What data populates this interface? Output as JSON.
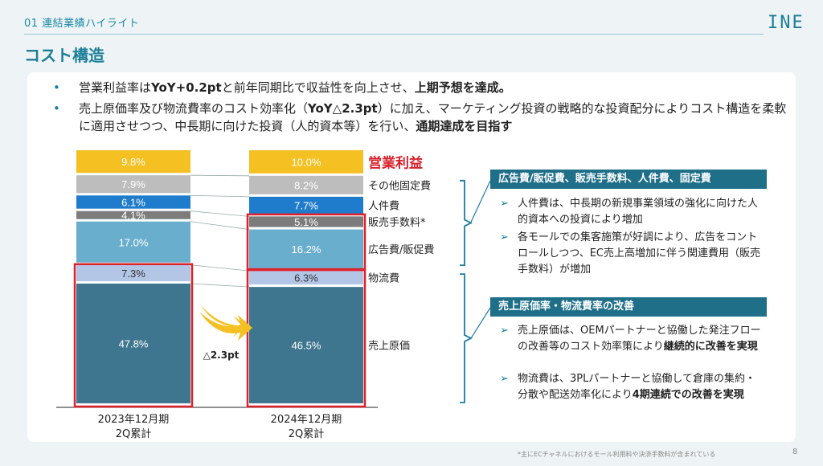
{
  "header": {
    "section_label": "01 連結業績ハイライト",
    "logo": "INE",
    "page_title": "コスト構造"
  },
  "bullets": [
    {
      "parts": [
        {
          "t": "営業利益率は",
          "b": false
        },
        {
          "t": "YoY+0.2pt",
          "b": true
        },
        {
          "t": "と前年同期比で収益性を向上させ、",
          "b": false
        },
        {
          "t": "上期予想を達成。",
          "b": true
        }
      ]
    },
    {
      "parts": [
        {
          "t": "売上原価率及び物流費率のコスト効率化（",
          "b": false
        },
        {
          "t": "YoY△2.3pt",
          "b": true
        },
        {
          "t": "）に加え、マーケティング投資の戦略的な投資配分によりコスト構造を柔軟に適用させつつ、中長期に向けた投資（人的資本等）を行い、",
          "b": false
        },
        {
          "t": "通期達成を目指す",
          "b": true
        }
      ]
    }
  ],
  "chart_data": {
    "type": "bar",
    "stacked": true,
    "categories": [
      "2023年12月期\n2Q累計",
      "2024年12月期\n2Q累計"
    ],
    "series": [
      {
        "name": "売上原価",
        "values": [
          47.8,
          46.5
        ],
        "labels": [
          "47.8%",
          "46.5%"
        ],
        "color": "#3f768f",
        "label_color": "#ffffff"
      },
      {
        "name": "物流費",
        "values": [
          7.3,
          6.3
        ],
        "labels": [
          "7.3%",
          "6.3%"
        ],
        "color": "#b3c6e6",
        "label_color": "#333333"
      },
      {
        "name": "広告費/販促費",
        "values": [
          17.0,
          16.2
        ],
        "labels": [
          "17.0%",
          "16.2%"
        ],
        "color": "#6aaecd",
        "label_color": "#ffffff"
      },
      {
        "name": "販売手数料*",
        "values": [
          4.1,
          5.1
        ],
        "labels": [
          "4.1%",
          "5.1%"
        ],
        "color": "#7c7c7c",
        "label_color": "#ffffff"
      },
      {
        "name": "人件費",
        "values": [
          6.1,
          7.7
        ],
        "labels": [
          "6.1%",
          "7.7%"
        ],
        "color": "#1f7ccc",
        "label_color": "#ffffff"
      },
      {
        "name": "その他固定費",
        "values": [
          7.9,
          8.2
        ],
        "labels": [
          "7.9%",
          "8.2%"
        ],
        "color": "#bdbdbd",
        "label_color": "#ffffff"
      },
      {
        "name": "営業利益",
        "values": [
          9.8,
          10.0
        ],
        "labels": [
          "9.8%",
          "10.0%"
        ],
        "color": "#f5c022",
        "label_color": "#ffffff",
        "name_color": "#d8202a"
      }
    ],
    "annotation": "△2.3pt",
    "highlight_color": "#e0202a",
    "arrow_color": "#f5c022"
  },
  "right_boxes": [
    {
      "title": "広告費/販促費、販売手数料、人件費、固定費",
      "items": [
        {
          "parts": [
            {
              "t": "人件費は、中長期の新規事業領域の強化に向けた人的資本への投資により増加",
              "b": false
            }
          ]
        },
        {
          "parts": [
            {
              "t": "各モールでの集客施策が好調により、広告をコントロールしつつ、EC売上高増加に伴う関連費用（販売手数料）が増加",
              "b": false
            }
          ]
        }
      ]
    },
    {
      "title": "売上原価率・物流費率の改善",
      "items": [
        {
          "parts": [
            {
              "t": "売上原価は、OEMパートナーと協働した発注フローの改善等のコスト効率策により",
              "b": false
            },
            {
              "t": "継続的に改善を実現",
              "b": true
            }
          ]
        },
        {
          "parts": [
            {
              "t": "物流費は、3PLパートナーと協働して倉庫の集約・分散や配送効率化により",
              "b": false
            },
            {
              "t": "4期連続での改善を実現",
              "b": true
            }
          ]
        }
      ]
    }
  ],
  "footnote": "*主にECチャネルにおけるモール利用料や決済手数料が含まれている",
  "page_number": "8"
}
